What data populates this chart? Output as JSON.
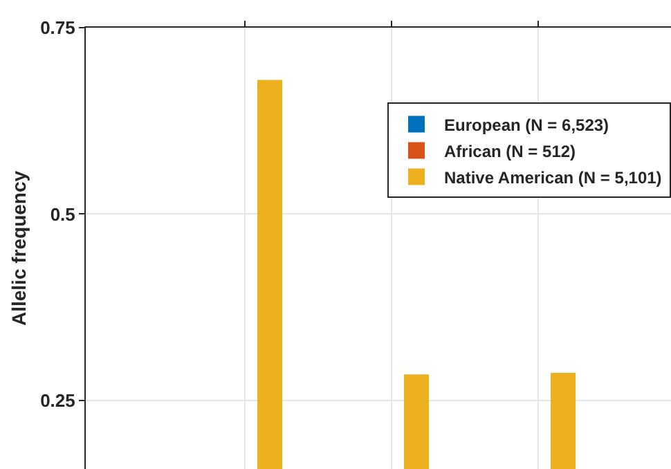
{
  "chart_data": {
    "type": "bar",
    "ylabel": "Allelic frequency",
    "categories": [
      null,
      null,
      null
    ],
    "series": [
      {
        "name": "European (N = 6,523)",
        "color": "#0072bd",
        "values": [
          null,
          null,
          null
        ]
      },
      {
        "name": "African (N = 512)",
        "color": "#d95319",
        "values": [
          null,
          null,
          null
        ]
      },
      {
        "name": "Native American (N = 5,101)",
        "color": "#edb120",
        "values": [
          0.68,
          0.285,
          0.287
        ]
      }
    ],
    "ylim": [
      0.158,
      0.75
    ],
    "yticks": [
      0.25,
      0.5,
      0.75
    ],
    "grid": true,
    "legend": "top right",
    "tick_labels": "y"
  }
}
